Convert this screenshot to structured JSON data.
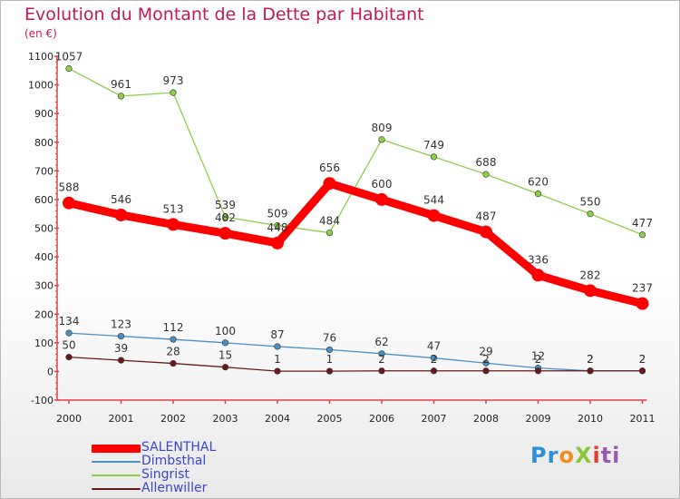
{
  "chart_data": {
    "type": "line",
    "title": "Evolution du Montant de la Dette par Habitant",
    "subtitle": "(en €)",
    "xlabel": "",
    "ylabel": "",
    "x": [
      "2000",
      "2001",
      "2002",
      "2003",
      "2004",
      "2005",
      "2006",
      "2007",
      "2008",
      "2009",
      "2010",
      "2011"
    ],
    "ylim": [
      -100,
      1100
    ],
    "yticks": [
      -100,
      0,
      100,
      200,
      300,
      400,
      500,
      600,
      700,
      800,
      900,
      1000,
      1100
    ],
    "grid": false,
    "legend_position": "bottom-left",
    "series": [
      {
        "name": "SALENTHAL",
        "color": "#ff0000",
        "emphasis": true,
        "values": [
          588,
          546,
          513,
          482,
          448,
          656,
          600,
          544,
          487,
          336,
          282,
          237
        ]
      },
      {
        "name": "Dimbsthal",
        "color": "#4a90c8",
        "emphasis": false,
        "values": [
          134,
          123,
          112,
          100,
          87,
          76,
          62,
          47,
          29,
          12,
          2,
          2
        ]
      },
      {
        "name": "Singrist",
        "color": "#8cd04a",
        "emphasis": false,
        "values": [
          1057,
          961,
          973,
          539,
          509,
          484,
          809,
          749,
          688,
          620,
          550,
          477
        ]
      },
      {
        "name": "Allenwiller",
        "color": "#6b1a1a",
        "emphasis": false,
        "values": [
          50,
          39,
          28,
          15,
          1,
          1,
          2,
          2,
          2,
          2,
          2,
          2
        ]
      }
    ],
    "data_labels": {
      "SALENTHAL": [
        "588",
        "546",
        "513",
        "482",
        "448",
        "656",
        "600",
        "544",
        "487",
        "336",
        "282",
        "237"
      ],
      "Dimbsthal": [
        "134",
        "123",
        "112",
        "100",
        "87",
        "76",
        "62",
        "47",
        "29",
        "12",
        "2",
        "2"
      ],
      "Singrist": [
        "1057",
        "961",
        "973",
        "539",
        "509",
        "484",
        "809",
        "749",
        "688",
        "620",
        "550",
        "477"
      ],
      "Allenwiller": [
        "50",
        "39",
        "28",
        "15",
        "1",
        "1",
        "2",
        "2",
        "2",
        "2",
        "2",
        "2"
      ]
    }
  },
  "branding": {
    "logo_parts": [
      "Pr",
      "o",
      "X",
      "i",
      "ti"
    ]
  }
}
